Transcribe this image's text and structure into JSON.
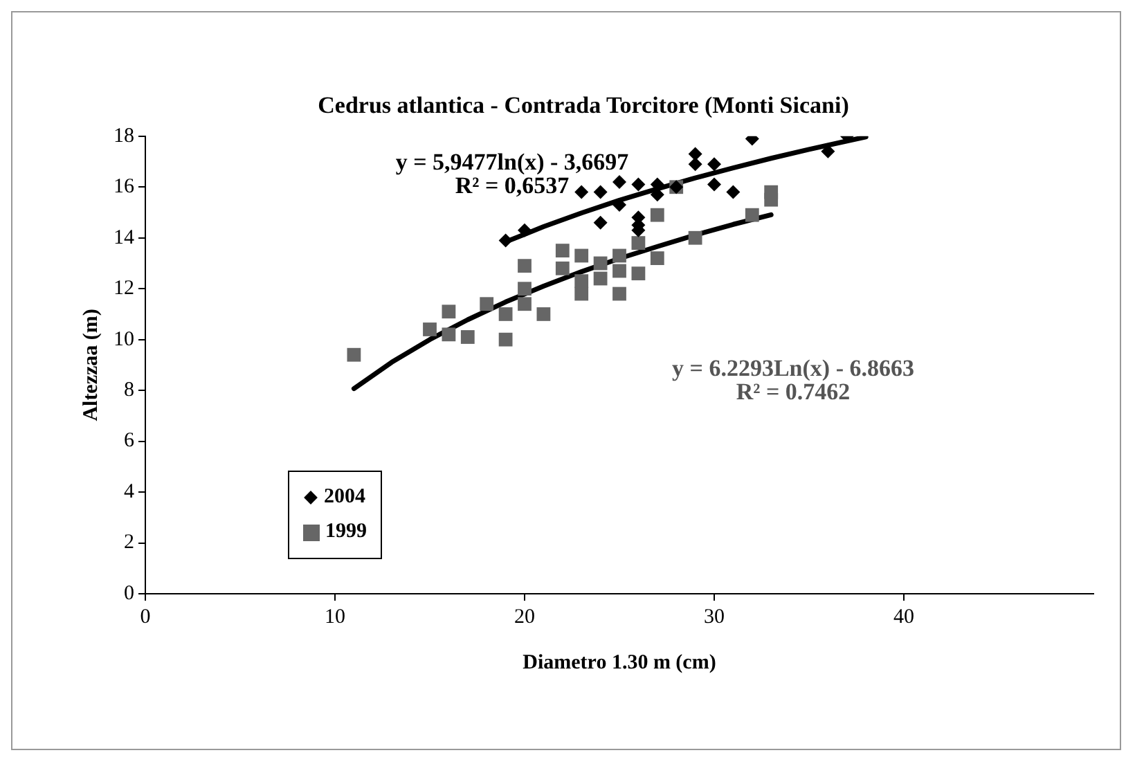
{
  "chart_data": {
    "type": "scatter",
    "title": "Cedrus atlantica - Contrada Torcitore (Monti Sicani)",
    "xlabel": "Diametro 1.30 m (cm)",
    "ylabel": "Altezzaa (m)",
    "xlim": [
      0,
      50
    ],
    "xticks": [
      0,
      10,
      20,
      30,
      40
    ],
    "ylim": [
      0,
      18
    ],
    "yticks": [
      0,
      2,
      4,
      6,
      8,
      10,
      12,
      14,
      16,
      18
    ],
    "grid": false,
    "legend": "bottom left",
    "series": [
      {
        "name": "2004",
        "color": "#000000",
        "marker": "diamond",
        "x": [
          19,
          20,
          23,
          24,
          24,
          25,
          25,
          26,
          26,
          26,
          26,
          27,
          27,
          28,
          29,
          29,
          30,
          30,
          31,
          32,
          36,
          37
        ],
        "values": [
          13.9,
          14.3,
          15.8,
          15.8,
          14.6,
          16.2,
          15.3,
          16.1,
          14.8,
          14.5,
          14.3,
          16.1,
          15.7,
          16.0,
          17.3,
          16.9,
          16.9,
          16.1,
          15.8,
          17.9,
          17.4,
          18.0
        ]
      },
      {
        "name": "1999",
        "color": "#666666",
        "marker": "square",
        "x": [
          11,
          15,
          16,
          16,
          17,
          18,
          19,
          19,
          20,
          20,
          20,
          21,
          22,
          22,
          23,
          23,
          23,
          24,
          24,
          25,
          25,
          25,
          26,
          26,
          27,
          27,
          28,
          29,
          32,
          33,
          33
        ],
        "values": [
          9.4,
          10.4,
          11.1,
          10.2,
          10.1,
          11.4,
          11.0,
          10.0,
          12.9,
          12.0,
          11.4,
          11.0,
          13.5,
          12.8,
          13.3,
          12.3,
          11.8,
          13.0,
          12.4,
          13.3,
          12.7,
          11.8,
          13.8,
          12.6,
          14.9,
          13.2,
          16.0,
          14.0,
          14.9,
          15.8,
          15.5
        ]
      },
      {
        "type": "line",
        "color": "#000000",
        "marker": "none",
        "x": [
          19,
          21,
          23,
          25,
          27,
          29,
          31,
          33,
          35,
          37,
          38
        ],
        "values": [
          13.84,
          14.44,
          14.98,
          15.48,
          15.93,
          16.36,
          16.75,
          17.13,
          17.48,
          17.81,
          17.97
        ]
      },
      {
        "type": "line",
        "color": "#000000",
        "marker": "none",
        "x": [
          11,
          13,
          15,
          17,
          19,
          21,
          23,
          25,
          27,
          29,
          31,
          33
        ],
        "values": [
          8.07,
          9.11,
          10.0,
          10.78,
          11.48,
          12.1,
          12.67,
          13.19,
          13.66,
          14.11,
          14.53,
          14.91
        ]
      }
    ],
    "annotations": [
      "y = 5,9477ln(x) - 3,6697",
      "R² = 0,6537",
      "y = 6.2293Ln(x) - 6.8663",
      "R² = 0.7462"
    ]
  }
}
